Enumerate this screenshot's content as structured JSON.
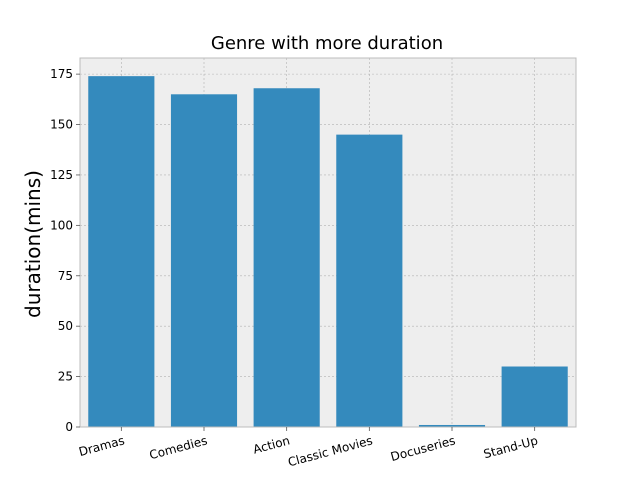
{
  "chart_data": {
    "type": "bar",
    "title": "Genre with more duration",
    "xlabel": "",
    "ylabel": "duration(mins)",
    "categories": [
      "Dramas",
      "Comedies",
      "Action",
      "Classic Movies",
      "Docuseries",
      "Stand-Up"
    ],
    "values": [
      174,
      165,
      168,
      145,
      1,
      30
    ],
    "ylim": [
      0,
      183
    ],
    "yticks": [
      0,
      25,
      50,
      75,
      100,
      125,
      150,
      175
    ],
    "grid": true,
    "bar_color": "#348ABD",
    "background_color": "#EEEEEE",
    "grid_color": "#B2B2B2"
  }
}
